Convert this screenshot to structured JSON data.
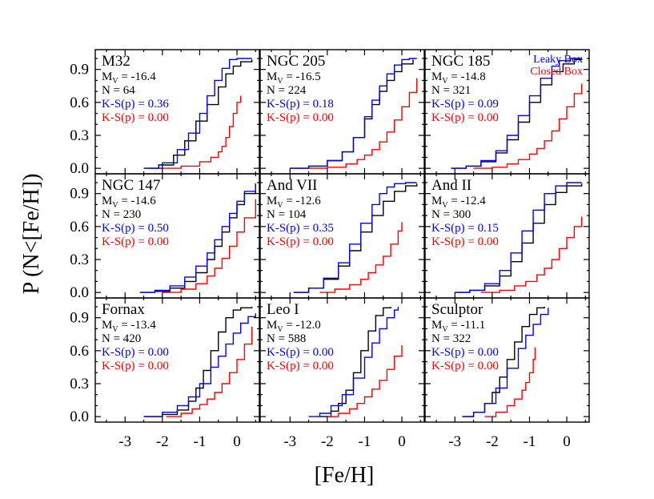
{
  "chart_data": {
    "type": "line",
    "xlabel": "[Fe/H]",
    "ylabel": "P (N<[Fe/H])",
    "xlim": [
      -3.8,
      0.6
    ],
    "ylim": [
      -0.05,
      1.08
    ],
    "xticks": [
      "-3",
      "-2",
      "-1",
      "0"
    ],
    "yticks": [
      "0.0",
      "0.3",
      "0.6",
      "0.9"
    ],
    "legend": {
      "placement": "top-right of top-right panel",
      "entries": [
        {
          "label": "Leaky Box",
          "color": "#0000ff"
        },
        {
          "label": "Closed Box",
          "color": "#ff0000"
        }
      ]
    },
    "colors": {
      "data": "#000000",
      "leaky": "#0000ff",
      "closed": "#ff0000"
    },
    "panels": [
      {
        "name": "M32",
        "mv": "-16.4",
        "n": "N = 64",
        "ks_leaky": "K-S(p) = 0.36",
        "ks_closed": "K-S(p) = 0.00",
        "series": [
          {
            "name": "data",
            "color": "#000000",
            "x": [
              -2.5,
              -2.1,
              -1.7,
              -1.4,
              -1.1,
              -0.8,
              -0.5,
              -0.3,
              -0.1,
              0.1,
              0.4
            ],
            "y": [
              0.0,
              0.03,
              0.12,
              0.25,
              0.43,
              0.58,
              0.74,
              0.86,
              0.93,
              0.97,
              0.99
            ]
          },
          {
            "name": "Leaky Box",
            "color": "#0000ff",
            "x": [
              -2.4,
              -2.0,
              -1.6,
              -1.3,
              -1.0,
              -0.8,
              -0.6,
              -0.4,
              -0.2,
              0.0,
              0.4
            ],
            "y": [
              0.0,
              0.05,
              0.17,
              0.32,
              0.5,
              0.66,
              0.8,
              0.91,
              0.99,
              1.0,
              1.0
            ]
          },
          {
            "name": "Closed Box",
            "color": "#ff0000",
            "x": [
              -2.0,
              -1.5,
              -1.0,
              -0.7,
              -0.5,
              -0.4,
              -0.3,
              -0.2,
              -0.1,
              0.0,
              0.1
            ],
            "y": [
              0.0,
              0.02,
              0.06,
              0.1,
              0.15,
              0.2,
              0.28,
              0.38,
              0.5,
              0.6,
              0.66
            ]
          }
        ]
      },
      {
        "name": "NGC 205",
        "mv": "-16.5",
        "n": "N = 224",
        "ks_leaky": "K-S(p) = 0.18",
        "ks_closed": "K-S(p) = 0.00",
        "series": [
          {
            "name": "data",
            "color": "#000000",
            "x": [
              -3.0,
              -2.5,
              -2.0,
              -1.6,
              -1.3,
              -1.0,
              -0.8,
              -0.6,
              -0.4,
              -0.2,
              0.0,
              0.3
            ],
            "y": [
              0.0,
              0.02,
              0.07,
              0.15,
              0.28,
              0.45,
              0.58,
              0.7,
              0.8,
              0.88,
              0.95,
              0.99
            ]
          },
          {
            "name": "Leaky Box",
            "color": "#0000ff",
            "x": [
              -3.0,
              -2.5,
              -2.0,
              -1.6,
              -1.3,
              -1.0,
              -0.8,
              -0.6,
              -0.4,
              -0.2,
              0.0,
              0.2,
              0.4
            ],
            "y": [
              0.0,
              0.02,
              0.07,
              0.15,
              0.28,
              0.47,
              0.62,
              0.75,
              0.86,
              0.94,
              0.99,
              1.0,
              1.0
            ]
          },
          {
            "name": "Closed Box",
            "color": "#ff0000",
            "x": [
              -2.5,
              -2.0,
              -1.5,
              -1.2,
              -1.0,
              -0.8,
              -0.6,
              -0.4,
              -0.2,
              0.0,
              0.2,
              0.4
            ],
            "y": [
              0.0,
              0.01,
              0.04,
              0.08,
              0.12,
              0.17,
              0.24,
              0.33,
              0.44,
              0.56,
              0.69,
              0.82
            ]
          }
        ]
      },
      {
        "name": "NGC 185",
        "mv": "-14.8",
        "n": "N = 321",
        "ks_leaky": "K-S(p) = 0.09",
        "ks_closed": "K-S(p) = 0.00",
        "series": [
          {
            "name": "data",
            "color": "#000000",
            "x": [
              -3.1,
              -2.7,
              -2.3,
              -1.9,
              -1.6,
              -1.3,
              -1.0,
              -0.7,
              -0.4,
              -0.1,
              0.2,
              0.4
            ],
            "y": [
              0.0,
              0.02,
              0.06,
              0.14,
              0.26,
              0.42,
              0.6,
              0.76,
              0.88,
              0.95,
              0.99,
              1.0
            ]
          },
          {
            "name": "Leaky Box",
            "color": "#0000ff",
            "x": [
              -3.1,
              -2.7,
              -2.3,
              -1.9,
              -1.6,
              -1.3,
              -1.0,
              -0.7,
              -0.4,
              -0.2,
              0.1,
              0.4
            ],
            "y": [
              0.0,
              0.02,
              0.07,
              0.16,
              0.3,
              0.48,
              0.66,
              0.82,
              0.93,
              0.98,
              1.0,
              1.0
            ]
          },
          {
            "name": "Closed Box",
            "color": "#ff0000",
            "x": [
              -2.5,
              -2.0,
              -1.6,
              -1.3,
              -1.0,
              -0.8,
              -0.6,
              -0.4,
              -0.2,
              0.0,
              0.2,
              0.4
            ],
            "y": [
              0.0,
              0.01,
              0.04,
              0.08,
              0.13,
              0.18,
              0.25,
              0.34,
              0.45,
              0.56,
              0.68,
              0.77
            ]
          }
        ]
      },
      {
        "name": "NGC 147",
        "mv": "-14.6",
        "n": "N = 230",
        "ks_leaky": "K-S(p) = 0.50",
        "ks_closed": "K-S(p) = 0.00",
        "series": [
          {
            "name": "data",
            "color": "#000000",
            "x": [
              -2.6,
              -2.2,
              -1.8,
              -1.4,
              -1.1,
              -0.8,
              -0.6,
              -0.4,
              -0.2,
              0.0,
              0.2,
              0.5
            ],
            "y": [
              0.0,
              0.01,
              0.04,
              0.1,
              0.18,
              0.3,
              0.42,
              0.55,
              0.68,
              0.8,
              0.9,
              0.99
            ]
          },
          {
            "name": "Leaky Box",
            "color": "#0000ff",
            "x": [
              -2.6,
              -2.2,
              -1.8,
              -1.4,
              -1.1,
              -0.8,
              -0.6,
              -0.4,
              -0.2,
              0.0,
              0.2,
              0.5
            ],
            "y": [
              0.0,
              0.02,
              0.06,
              0.14,
              0.24,
              0.36,
              0.48,
              0.6,
              0.72,
              0.83,
              0.92,
              0.99
            ]
          },
          {
            "name": "Closed Box",
            "color": "#ff0000",
            "x": [
              -2.0,
              -1.5,
              -1.1,
              -0.8,
              -0.6,
              -0.4,
              -0.2,
              0.0,
              0.2,
              0.5
            ],
            "y": [
              0.0,
              0.03,
              0.08,
              0.15,
              0.22,
              0.31,
              0.42,
              0.55,
              0.68,
              0.85
            ]
          }
        ]
      },
      {
        "name": "And VII",
        "mv": "-12.6",
        "n": "N = 104",
        "ks_leaky": "K-S(p) = 0.35",
        "ks_closed": "K-S(p) = 0.00",
        "series": [
          {
            "name": "data",
            "color": "#000000",
            "x": [
              -2.9,
              -2.5,
              -2.1,
              -1.7,
              -1.4,
              -1.1,
              -0.8,
              -0.5,
              -0.2,
              0.1,
              0.4
            ],
            "y": [
              0.0,
              0.04,
              0.12,
              0.24,
              0.38,
              0.55,
              0.7,
              0.83,
              0.92,
              0.97,
              0.99
            ]
          },
          {
            "name": "Leaky Box",
            "color": "#0000ff",
            "x": [
              -2.9,
              -2.5,
              -2.1,
              -1.7,
              -1.4,
              -1.1,
              -0.8,
              -0.6,
              -0.4,
              -0.2,
              0.1,
              0.4
            ],
            "y": [
              0.0,
              0.04,
              0.13,
              0.27,
              0.44,
              0.63,
              0.8,
              0.9,
              0.96,
              0.99,
              1.0,
              1.0
            ]
          },
          {
            "name": "Closed Box",
            "color": "#ff0000",
            "x": [
              -2.2,
              -1.8,
              -1.4,
              -1.1,
              -0.9,
              -0.7,
              -0.5,
              -0.3,
              -0.1,
              0.0
            ],
            "y": [
              0.0,
              0.03,
              0.07,
              0.12,
              0.18,
              0.25,
              0.33,
              0.44,
              0.56,
              0.64
            ]
          }
        ]
      },
      {
        "name": "And II",
        "mv": "-12.4",
        "n": "N = 300",
        "ks_leaky": "K-S(p) = 0.15",
        "ks_closed": "K-S(p) = 0.00",
        "series": [
          {
            "name": "data",
            "color": "#000000",
            "x": [
              -3.0,
              -2.6,
              -2.2,
              -1.8,
              -1.5,
              -1.2,
              -0.9,
              -0.6,
              -0.3,
              0.0,
              0.4
            ],
            "y": [
              0.0,
              0.02,
              0.06,
              0.15,
              0.28,
              0.45,
              0.63,
              0.8,
              0.91,
              0.97,
              0.99
            ]
          },
          {
            "name": "Leaky Box",
            "color": "#0000ff",
            "x": [
              -3.0,
              -2.6,
              -2.2,
              -1.8,
              -1.5,
              -1.2,
              -0.9,
              -0.6,
              -0.3,
              0.0,
              0.4
            ],
            "y": [
              0.0,
              0.02,
              0.08,
              0.2,
              0.36,
              0.56,
              0.75,
              0.9,
              0.97,
              1.0,
              1.0
            ]
          },
          {
            "name": "Closed Box",
            "color": "#ff0000",
            "x": [
              -2.3,
              -1.8,
              -1.4,
              -1.1,
              -0.8,
              -0.6,
              -0.4,
              -0.2,
              0.0,
              0.2,
              0.4
            ],
            "y": [
              0.0,
              0.02,
              0.06,
              0.1,
              0.16,
              0.22,
              0.3,
              0.4,
              0.5,
              0.6,
              0.69
            ]
          }
        ]
      },
      {
        "name": "Fornax",
        "mv": "-13.4",
        "n": "N = 420",
        "ks_leaky": "K-S(p) = 0.00",
        "ks_closed": "K-S(p) = 0.00",
        "series": [
          {
            "name": "data",
            "color": "#000000",
            "x": [
              -2.5,
              -2.0,
              -1.6,
              -1.3,
              -1.1,
              -0.9,
              -0.7,
              -0.5,
              -0.3,
              -0.1,
              0.1,
              0.4
            ],
            "y": [
              0.0,
              0.02,
              0.06,
              0.14,
              0.26,
              0.42,
              0.6,
              0.77,
              0.9,
              0.97,
              0.99,
              1.0
            ]
          },
          {
            "name": "Leaky Box",
            "color": "#0000ff",
            "x": [
              -2.5,
              -2.0,
              -1.6,
              -1.3,
              -1.0,
              -0.7,
              -0.5,
              -0.3,
              -0.1,
              0.1,
              0.3,
              0.5
            ],
            "y": [
              0.0,
              0.04,
              0.1,
              0.18,
              0.3,
              0.45,
              0.55,
              0.66,
              0.76,
              0.85,
              0.91,
              0.94
            ]
          },
          {
            "name": "Closed Box",
            "color": "#ff0000",
            "x": [
              -1.9,
              -1.5,
              -1.2,
              -1.0,
              -0.8,
              -0.6,
              -0.4,
              -0.2,
              0.0,
              0.2,
              0.4
            ],
            "y": [
              0.0,
              0.03,
              0.07,
              0.11,
              0.16,
              0.22,
              0.3,
              0.4,
              0.52,
              0.66,
              0.82
            ]
          }
        ]
      },
      {
        "name": "Leo I",
        "mv": "-12.0",
        "n": "N = 588",
        "ks_leaky": "K-S(p) = 0.00",
        "ks_closed": "K-S(p) = 0.00",
        "series": [
          {
            "name": "data",
            "color": "#000000",
            "x": [
              -2.2,
              -1.9,
              -1.7,
              -1.5,
              -1.3,
              -1.1,
              -0.9,
              -0.7,
              -0.5,
              -0.3
            ],
            "y": [
              0.0,
              0.05,
              0.12,
              0.24,
              0.4,
              0.6,
              0.78,
              0.92,
              0.99,
              1.0
            ]
          },
          {
            "name": "Leaky Box",
            "color": "#0000ff",
            "x": [
              -2.5,
              -2.2,
              -1.9,
              -1.6,
              -1.3,
              -1.0,
              -0.8,
              -0.6,
              -0.4,
              -0.2,
              -0.1
            ],
            "y": [
              0.0,
              0.03,
              0.1,
              0.2,
              0.35,
              0.54,
              0.67,
              0.8,
              0.9,
              0.97,
              1.0
            ]
          },
          {
            "name": "Closed Box",
            "color": "#ff0000",
            "x": [
              -2.0,
              -1.7,
              -1.4,
              -1.2,
              -1.0,
              -0.8,
              -0.6,
              -0.4,
              -0.2,
              0.0
            ],
            "y": [
              0.0,
              0.03,
              0.07,
              0.12,
              0.18,
              0.25,
              0.33,
              0.43,
              0.55,
              0.65
            ]
          }
        ]
      },
      {
        "name": "Sculptor",
        "mv": "-11.1",
        "n": "N = 322",
        "ks_leaky": "K-S(p) = 0.00",
        "ks_closed": "K-S(p) = 0.00",
        "series": [
          {
            "name": "data",
            "color": "#000000",
            "x": [
              -2.8,
              -2.5,
              -2.2,
              -2.0,
              -1.8,
              -1.6,
              -1.4,
              -1.2,
              -1.0,
              -0.8,
              -0.6
            ],
            "y": [
              0.0,
              0.04,
              0.12,
              0.22,
              0.36,
              0.52,
              0.68,
              0.82,
              0.93,
              0.99,
              1.0
            ]
          },
          {
            "name": "Leaky Box",
            "color": "#0000ff",
            "x": [
              -2.8,
              -2.5,
              -2.2,
              -1.9,
              -1.6,
              -1.3,
              -1.1,
              -0.9,
              -0.7,
              -0.5
            ],
            "y": [
              0.0,
              0.04,
              0.12,
              0.26,
              0.44,
              0.62,
              0.74,
              0.84,
              0.93,
              0.99
            ]
          },
          {
            "name": "Closed Box",
            "color": "#ff0000",
            "x": [
              -2.2,
              -1.9,
              -1.6,
              -1.4,
              -1.2,
              -1.1,
              -1.0,
              -0.9,
              -0.85
            ],
            "y": [
              0.0,
              0.04,
              0.1,
              0.16,
              0.24,
              0.31,
              0.4,
              0.52,
              0.63
            ]
          }
        ]
      }
    ]
  }
}
